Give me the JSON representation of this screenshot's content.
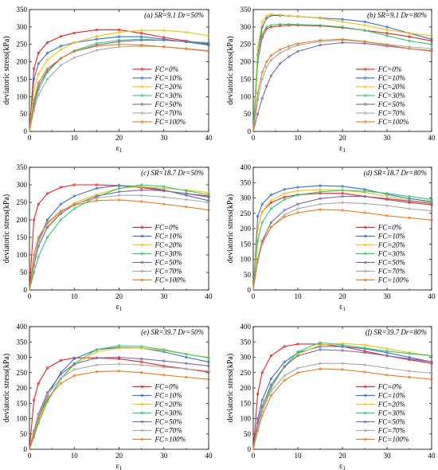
{
  "figure": {
    "series_names": [
      "FC=0%",
      "FC=10%",
      "FC=20%",
      "FC=30%",
      "FC=50%",
      "FC=70%",
      "FC=100%"
    ],
    "series_colors": [
      "#ee2222",
      "#3a6fc9",
      "#f1c40f",
      "#2ecc71",
      "#7b6aa8",
      "#aaaaaa",
      "#e67e22"
    ]
  },
  "chart_data": [
    {
      "type": "line",
      "panel": "a",
      "title": "(a) SR=9.1  Dr=50%",
      "xlabel": "ε1",
      "ylabel": "deviatoric stress(kPa)",
      "xlim": [
        0,
        40
      ],
      "ylim": [
        0,
        350
      ],
      "xticks": [
        0,
        10,
        20,
        30,
        40
      ],
      "yticks": [
        0,
        50,
        100,
        150,
        200,
        250,
        300,
        350
      ],
      "legend_position": "bottom-right",
      "x": [
        0,
        1,
        2,
        4,
        7,
        10,
        15,
        20,
        25,
        30,
        35,
        40
      ],
      "series": [
        {
          "name": "FC=0%",
          "values": [
            0,
            180,
            225,
            255,
            273,
            283,
            292,
            292,
            282,
            270,
            260,
            250
          ]
        },
        {
          "name": "FC=10%",
          "values": [
            0,
            150,
            195,
            225,
            245,
            255,
            265,
            272,
            272,
            265,
            257,
            248
          ]
        },
        {
          "name": "FC=20%",
          "values": [
            0,
            120,
            165,
            205,
            235,
            255,
            273,
            285,
            290,
            290,
            285,
            275
          ]
        },
        {
          "name": "FC=30%",
          "values": [
            0,
            70,
            120,
            170,
            210,
            232,
            253,
            262,
            265,
            262,
            258,
            255
          ]
        },
        {
          "name": "FC=50%",
          "values": [
            0,
            80,
            130,
            175,
            210,
            230,
            248,
            258,
            262,
            262,
            258,
            252
          ]
        },
        {
          "name": "FC=70%",
          "values": [
            0,
            60,
            105,
            150,
            190,
            212,
            233,
            243,
            245,
            243,
            238,
            232
          ]
        },
        {
          "name": "FC=100%",
          "values": [
            0,
            90,
            140,
            180,
            210,
            230,
            245,
            250,
            248,
            243,
            237,
            230
          ]
        }
      ]
    },
    {
      "type": "line",
      "panel": "b",
      "title": "(b) SR=9.1  Dr=80%",
      "xlabel": "ε1",
      "ylabel": "deviatoric stress(kPa)",
      "xlim": [
        0,
        40
      ],
      "ylim": [
        0,
        350
      ],
      "xticks": [
        0,
        10,
        20,
        30,
        40
      ],
      "yticks": [
        0,
        50,
        100,
        150,
        200,
        250,
        300,
        350
      ],
      "legend_position": "bottom-right",
      "x": [
        0,
        1,
        2,
        3,
        4,
        6,
        8,
        10,
        15,
        20,
        25,
        30,
        35,
        40
      ],
      "series": [
        {
          "name": "FC=0%",
          "values": [
            0,
            200,
            270,
            295,
            300,
            303,
            305,
            305,
            303,
            298,
            290,
            282,
            272,
            260
          ]
        },
        {
          "name": "FC=10%",
          "values": [
            0,
            220,
            300,
            325,
            333,
            333,
            332,
            330,
            326,
            322,
            315,
            300,
            282,
            265
          ]
        },
        {
          "name": "FC=20%",
          "values": [
            0,
            240,
            315,
            332,
            336,
            335,
            332,
            330,
            325,
            315,
            305,
            292,
            282,
            275
          ]
        },
        {
          "name": "FC=30%",
          "values": [
            0,
            200,
            280,
            300,
            305,
            308,
            308,
            307,
            305,
            300,
            290,
            275,
            260,
            250
          ]
        },
        {
          "name": "FC=50%",
          "values": [
            0,
            50,
            95,
            130,
            160,
            195,
            215,
            230,
            248,
            255,
            253,
            245,
            238,
            232
          ]
        },
        {
          "name": "FC=70%",
          "values": [
            0,
            90,
            150,
            185,
            205,
            225,
            238,
            248,
            258,
            262,
            258,
            250,
            243,
            238
          ]
        },
        {
          "name": "FC=100%",
          "values": [
            0,
            110,
            170,
            200,
            218,
            235,
            245,
            252,
            262,
            265,
            258,
            248,
            238,
            230
          ]
        }
      ]
    },
    {
      "type": "line",
      "panel": "c",
      "title": "(c) SR=18.7  Dr=50%",
      "xlabel": "ε1",
      "ylabel": "deviatoric stress(kPa)",
      "xlim": [
        0,
        40
      ],
      "ylim": [
        0,
        350
      ],
      "xticks": [
        0,
        10,
        20,
        30,
        40
      ],
      "yticks": [
        0,
        50,
        100,
        150,
        200,
        250,
        300,
        350
      ],
      "legend_position": "bottom-right",
      "x": [
        0,
        1,
        2,
        4,
        7,
        10,
        15,
        20,
        25,
        30,
        35,
        40
      ],
      "series": [
        {
          "name": "FC=0%",
          "values": [
            0,
            200,
            245,
            275,
            293,
            300,
            300,
            298,
            292,
            283,
            275,
            268
          ]
        },
        {
          "name": "FC=10%",
          "values": [
            0,
            80,
            140,
            200,
            245,
            268,
            290,
            298,
            295,
            285,
            270,
            255
          ]
        },
        {
          "name": "FC=20%",
          "values": [
            0,
            70,
            125,
            180,
            222,
            248,
            272,
            290,
            295,
            290,
            285,
            278
          ]
        },
        {
          "name": "FC=30%",
          "values": [
            0,
            50,
            95,
            150,
            200,
            232,
            265,
            290,
            300,
            295,
            283,
            272
          ]
        },
        {
          "name": "FC=50%",
          "values": [
            0,
            70,
            125,
            178,
            218,
            243,
            268,
            280,
            285,
            283,
            275,
            265
          ]
        },
        {
          "name": "FC=70%",
          "values": [
            0,
            80,
            138,
            188,
            225,
            245,
            262,
            270,
            270,
            265,
            258,
            250
          ]
        },
        {
          "name": "FC=100%",
          "values": [
            0,
            100,
            150,
            192,
            225,
            242,
            255,
            257,
            252,
            245,
            237,
            228
          ]
        }
      ]
    },
    {
      "type": "line",
      "panel": "d",
      "title": "(d) SR=18.7  Dr=80%",
      "xlabel": "ε1",
      "ylabel": "deviatoric stress(kPa)",
      "xlim": [
        0,
        40
      ],
      "ylim": [
        0,
        400
      ],
      "xticks": [
        0,
        10,
        20,
        30,
        40
      ],
      "yticks": [
        0,
        50,
        100,
        150,
        200,
        250,
        300,
        350,
        400
      ],
      "legend_position": "bottom-right",
      "x": [
        0,
        1,
        2,
        4,
        7,
        10,
        15,
        20,
        25,
        30,
        35,
        40
      ],
      "series": [
        {
          "name": "FC=0%",
          "values": [
            0,
            200,
            255,
            285,
            303,
            310,
            315,
            315,
            305,
            295,
            285,
            278
          ]
        },
        {
          "name": "FC=10%",
          "values": [
            0,
            240,
            280,
            310,
            328,
            335,
            340,
            338,
            328,
            312,
            298,
            288
          ]
        },
        {
          "name": "FC=20%",
          "values": [
            0,
            200,
            255,
            292,
            315,
            323,
            327,
            325,
            318,
            305,
            292,
            285
          ]
        },
        {
          "name": "FC=30%",
          "values": [
            0,
            160,
            220,
            265,
            295,
            310,
            320,
            325,
            322,
            315,
            305,
            295
          ]
        },
        {
          "name": "FC=50%",
          "values": [
            0,
            100,
            160,
            220,
            260,
            280,
            298,
            305,
            305,
            298,
            290,
            282
          ]
        },
        {
          "name": "FC=70%",
          "values": [
            0,
            90,
            150,
            205,
            245,
            265,
            280,
            285,
            282,
            275,
            265,
            258
          ]
        },
        {
          "name": "FC=100%",
          "values": [
            0,
            100,
            155,
            205,
            238,
            252,
            262,
            260,
            252,
            242,
            235,
            228
          ]
        }
      ]
    },
    {
      "type": "line",
      "panel": "e",
      "title": "(e) SR=39.7  Dr=50%",
      "xlabel": "ε1",
      "ylabel": "deviatoric stress(kPa)",
      "xlim": [
        0,
        40
      ],
      "ylim": [
        0,
        400
      ],
      "xticks": [
        0,
        10,
        20,
        30,
        40
      ],
      "yticks": [
        0,
        50,
        100,
        150,
        200,
        250,
        300,
        350,
        400
      ],
      "legend_position": "bottom-right",
      "x": [
        0,
        1,
        2,
        4,
        7,
        10,
        15,
        20,
        25,
        30,
        35,
        40
      ],
      "series": [
        {
          "name": "FC=0%",
          "values": [
            0,
            160,
            215,
            265,
            290,
            298,
            298,
            295,
            285,
            272,
            262,
            252
          ]
        },
        {
          "name": "FC=10%",
          "values": [
            0,
            50,
            100,
            175,
            250,
            295,
            325,
            332,
            330,
            318,
            300,
            285
          ]
        },
        {
          "name": "FC=20%",
          "values": [
            0,
            45,
            90,
            160,
            230,
            275,
            318,
            330,
            330,
            322,
            310,
            300
          ]
        },
        {
          "name": "FC=30%",
          "values": [
            0,
            40,
            85,
            155,
            230,
            280,
            325,
            338,
            335,
            325,
            310,
            298
          ]
        },
        {
          "name": "FC=50%",
          "values": [
            0,
            60,
            115,
            185,
            245,
            278,
            298,
            300,
            295,
            288,
            280,
            272
          ]
        },
        {
          "name": "FC=70%",
          "values": [
            0,
            55,
            110,
            178,
            232,
            260,
            275,
            278,
            275,
            268,
            262,
            255
          ]
        },
        {
          "name": "FC=100%",
          "values": [
            0,
            50,
            100,
            165,
            215,
            240,
            253,
            255,
            250,
            242,
            235,
            228
          ]
        }
      ]
    },
    {
      "type": "line",
      "panel": "f",
      "title": "(f) SR=39.7  Dr=80%",
      "xlabel": "ε1",
      "ylabel": "deviatoric stress(kPa)",
      "xlim": [
        0,
        40
      ],
      "ylim": [
        0,
        400
      ],
      "xticks": [
        0,
        10,
        20,
        30,
        40
      ],
      "yticks": [
        0,
        50,
        100,
        150,
        200,
        250,
        300,
        350,
        400
      ],
      "legend_position": "bottom-right",
      "x": [
        0,
        1,
        2,
        4,
        7,
        10,
        15,
        20,
        25,
        30,
        35,
        40
      ],
      "series": [
        {
          "name": "FC=0%",
          "values": [
            0,
            180,
            250,
            305,
            335,
            343,
            343,
            335,
            320,
            305,
            292,
            280
          ]
        },
        {
          "name": "FC=10%",
          "values": [
            0,
            100,
            160,
            230,
            285,
            315,
            335,
            335,
            328,
            315,
            300,
            285
          ]
        },
        {
          "name": "FC=20%",
          "values": [
            0,
            80,
            135,
            205,
            268,
            310,
            340,
            345,
            340,
            328,
            315,
            305
          ]
        },
        {
          "name": "FC=30%",
          "values": [
            0,
            70,
            125,
            200,
            270,
            318,
            348,
            340,
            330,
            320,
            312,
            305
          ]
        },
        {
          "name": "FC=50%",
          "values": [
            0,
            85,
            140,
            210,
            270,
            305,
            325,
            322,
            315,
            305,
            295,
            285
          ]
        },
        {
          "name": "FC=70%",
          "values": [
            0,
            75,
            125,
            190,
            240,
            265,
            280,
            280,
            275,
            265,
            255,
            248
          ]
        },
        {
          "name": "FC=100%",
          "values": [
            0,
            60,
            110,
            175,
            225,
            250,
            262,
            260,
            252,
            242,
            235,
            228
          ]
        }
      ]
    }
  ]
}
